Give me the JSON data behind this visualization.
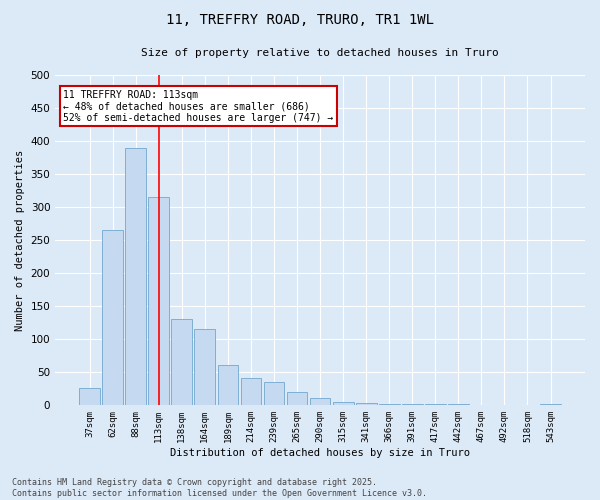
{
  "title_line1": "11, TREFFRY ROAD, TRURO, TR1 1WL",
  "title_line2": "Size of property relative to detached houses in Truro",
  "xlabel": "Distribution of detached houses by size in Truro",
  "ylabel": "Number of detached properties",
  "categories": [
    "37sqm",
    "62sqm",
    "88sqm",
    "113sqm",
    "138sqm",
    "164sqm",
    "189sqm",
    "214sqm",
    "239sqm",
    "265sqm",
    "290sqm",
    "315sqm",
    "341sqm",
    "366sqm",
    "391sqm",
    "417sqm",
    "442sqm",
    "467sqm",
    "492sqm",
    "518sqm",
    "543sqm"
  ],
  "values": [
    25,
    265,
    390,
    315,
    130,
    115,
    60,
    40,
    35,
    20,
    10,
    5,
    3,
    1,
    1,
    1,
    1,
    0,
    0,
    0,
    2
  ],
  "bar_color": "#c5d9f0",
  "bar_edge_color": "#7eb0d5",
  "redline_index": 3,
  "annotation_text": "11 TREFFRY ROAD: 113sqm\n← 48% of detached houses are smaller (686)\n52% of semi-detached houses are larger (747) →",
  "annotation_box_color": "#ffffff",
  "annotation_border_color": "#cc0000",
  "footer_text": "Contains HM Land Registry data © Crown copyright and database right 2025.\nContains public sector information licensed under the Open Government Licence v3.0.",
  "background_color": "#dce9f7",
  "ylim": [
    0,
    500
  ],
  "yticks": [
    0,
    50,
    100,
    150,
    200,
    250,
    300,
    350,
    400,
    450,
    500
  ]
}
